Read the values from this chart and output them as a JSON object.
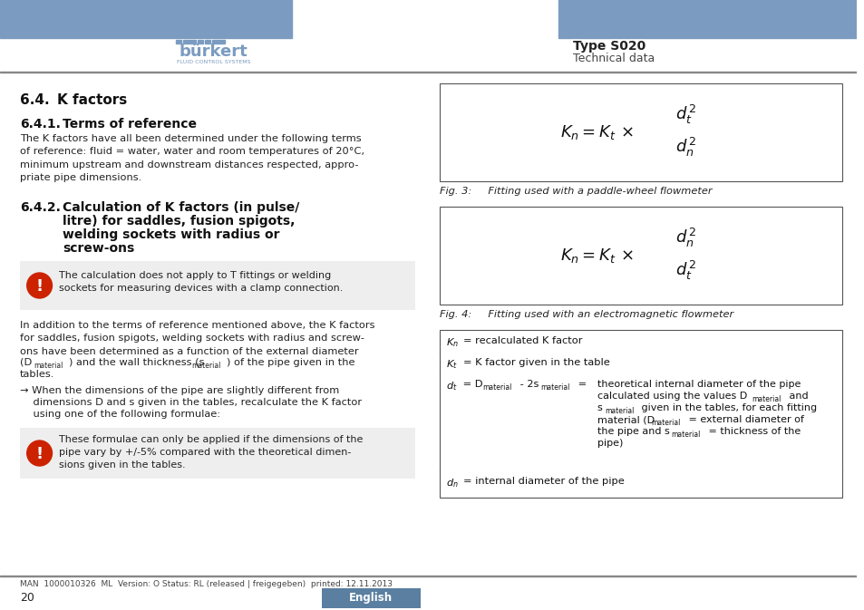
{
  "page_bg": "#ffffff",
  "header_bar_color": "#7b9cc0",
  "burkert_text_color": "#7b9cc0",
  "type_title": "Type S020",
  "type_subtitle": "Technical data",
  "warning_box_color": "#eeeeee",
  "warning_circle_color": "#cc2200",
  "fig3_caption": "Fig. 3:     Fitting used with a paddle-wheel flowmeter",
  "fig4_caption": "Fig. 4:     Fitting used with an electromagnetic flowmeter",
  "footer_text": "MAN  1000010326  ML  Version: O Status: RL (released | freigegeben)  printed: 12.11.2013",
  "page_num": "20",
  "lang_btn_text": "English",
  "lang_btn_color": "#5a7fa0"
}
